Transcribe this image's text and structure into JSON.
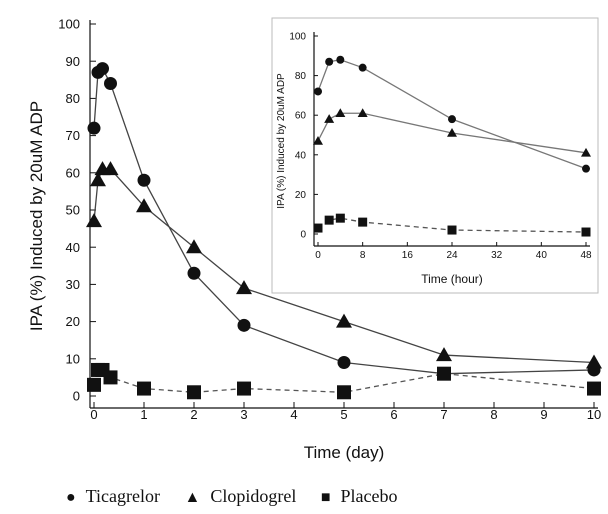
{
  "chart_data": [
    {
      "type": "line",
      "xlabel": "Time (day)",
      "ylabel": "IPA (%) Induced by 20uM ADP",
      "xlim": [
        0,
        10
      ],
      "ylim": [
        0,
        100
      ],
      "xticks": [
        "0",
        "1",
        "2",
        "3",
        "4",
        "5",
        "6",
        "7",
        "8",
        "9",
        "10"
      ],
      "yticks": [
        "0",
        "10",
        "20",
        "30",
        "40",
        "50",
        "60",
        "70",
        "80",
        "90",
        "100"
      ],
      "series": [
        {
          "name": "Ticagrelor",
          "marker": "circle",
          "line": "solid",
          "x": [
            0,
            0.08,
            0.17,
            0.33,
            1,
            2,
            3,
            5,
            7,
            10
          ],
          "y": [
            72,
            87,
            88,
            84,
            58,
            33,
            19,
            9,
            6,
            7
          ]
        },
        {
          "name": "Clopidogrel",
          "marker": "triangle",
          "line": "solid",
          "x": [
            0,
            0.08,
            0.17,
            0.33,
            1,
            2,
            3,
            5,
            7,
            10
          ],
          "y": [
            47,
            58,
            61,
            61,
            51,
            40,
            29,
            20,
            11,
            9
          ]
        },
        {
          "name": "Placebo",
          "marker": "square",
          "line": "dashed",
          "x": [
            0,
            0.08,
            0.17,
            0.33,
            1,
            2,
            3,
            5,
            7,
            10
          ],
          "y": [
            3,
            7,
            7,
            5,
            2,
            1,
            2,
            1,
            6,
            2
          ]
        }
      ]
    },
    {
      "type": "line",
      "xlabel": "Time (hour)",
      "ylabel": "IPA (%) Induced by 20uM ADP",
      "xlim": [
        0,
        48
      ],
      "ylim": [
        0,
        100
      ],
      "xticks": [
        "0",
        "8",
        "16",
        "24",
        "32",
        "40",
        "48"
      ],
      "yticks": [
        "0",
        "20",
        "40",
        "60",
        "80",
        "100"
      ],
      "series": [
        {
          "name": "Ticagrelor",
          "marker": "circle",
          "line": "solid",
          "x": [
            0,
            2,
            4,
            8,
            24,
            48
          ],
          "y": [
            72,
            87,
            88,
            84,
            58,
            33
          ]
        },
        {
          "name": "Clopidogrel",
          "marker": "triangle",
          "line": "solid",
          "x": [
            0,
            2,
            4,
            8,
            24,
            48
          ],
          "y": [
            47,
            58,
            61,
            61,
            51,
            41
          ]
        },
        {
          "name": "Placebo",
          "marker": "square",
          "line": "dashed",
          "x": [
            0,
            2,
            4,
            8,
            24,
            48
          ],
          "y": [
            3,
            7,
            8,
            6,
            2,
            1
          ]
        }
      ]
    }
  ],
  "legend": {
    "items": [
      {
        "symbol": "●",
        "label": "Ticagrelor"
      },
      {
        "symbol": "▲",
        "label": "Clopidogrel"
      },
      {
        "symbol": "■",
        "label": "Placebo"
      }
    ]
  }
}
